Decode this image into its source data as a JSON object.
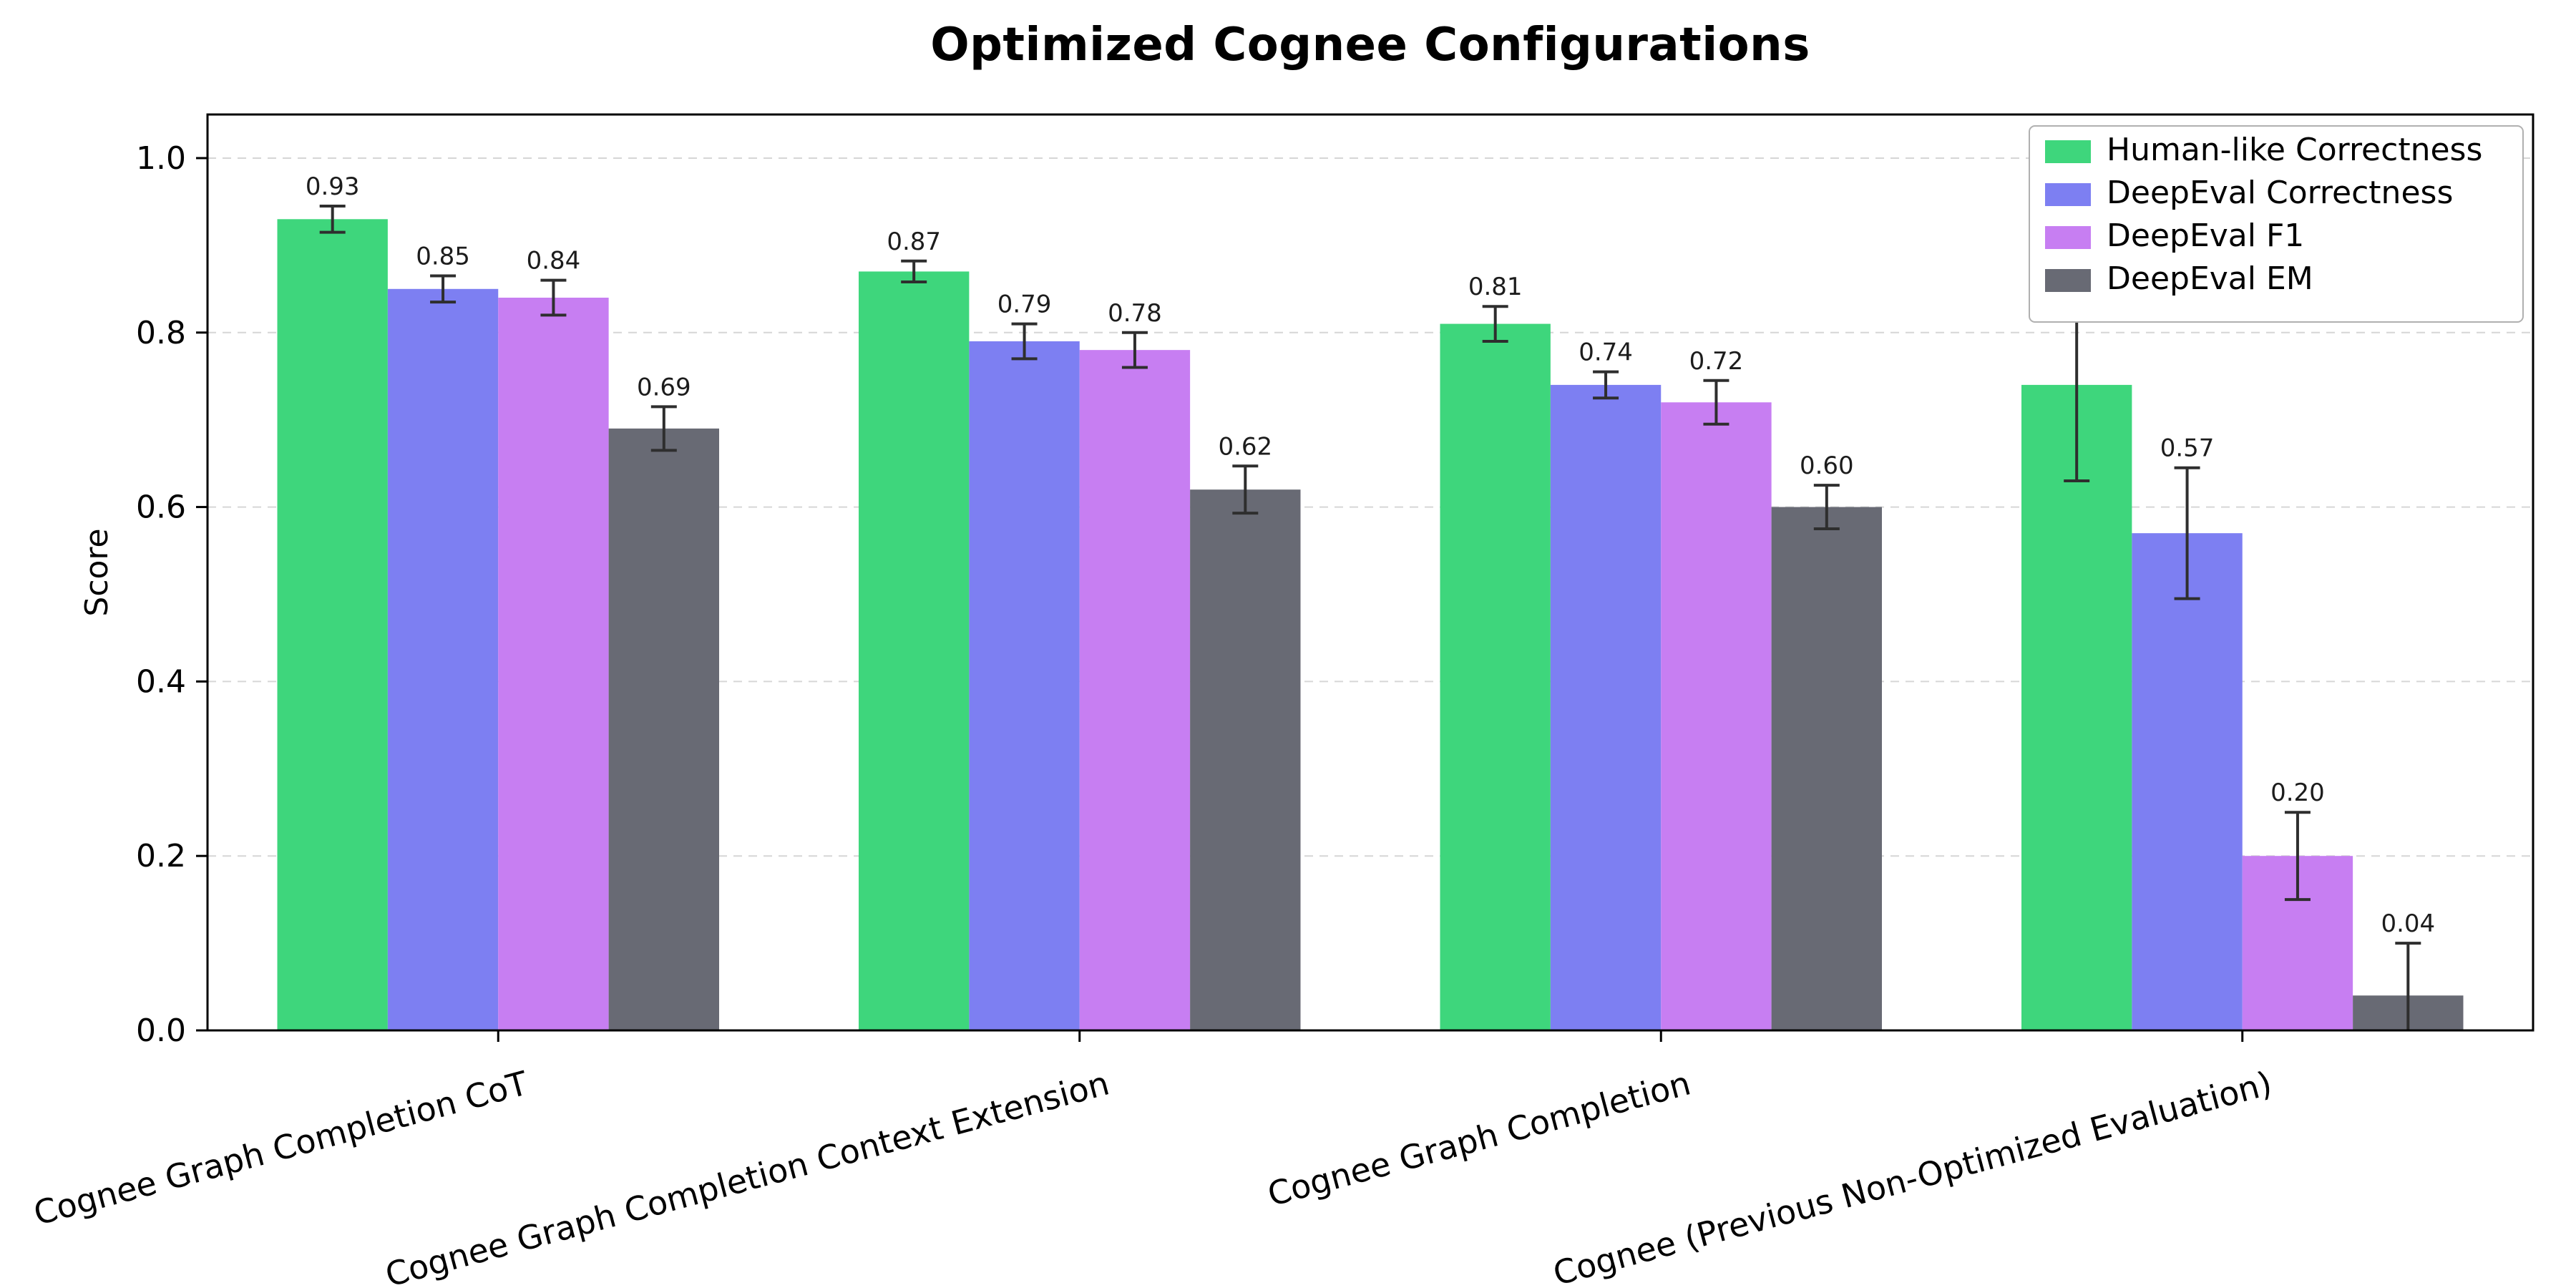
{
  "chart_data": {
    "type": "bar",
    "title": "Optimized Cognee Configurations",
    "ylabel": "Score",
    "xlabel": "",
    "ylim": [
      0,
      1.05
    ],
    "yticks": [
      0.0,
      0.2,
      0.4,
      0.6,
      0.8,
      1.0
    ],
    "grid": "horizontal-dashed",
    "legend_position": "upper-right",
    "background_color": "#ffffff",
    "error_bar_color": "#2e2e2e",
    "categories": [
      "Cognee Graph Completion CoT",
      "Cognee Graph Completion Context Extension",
      "Cognee Graph Completion",
      "Cognee (Previous Non-Optimized Evaluation)"
    ],
    "series": [
      {
        "name": "Human-like Correctness",
        "color": "#3ed67c",
        "values": [
          0.93,
          0.87,
          0.81,
          0.74
        ],
        "errors": [
          0.015,
          0.012,
          0.02,
          0.11
        ]
      },
      {
        "name": "DeepEval Correctness",
        "color": "#7d7ff2",
        "values": [
          0.85,
          0.79,
          0.74,
          0.57
        ],
        "errors": [
          0.015,
          0.02,
          0.015,
          0.075
        ]
      },
      {
        "name": "DeepEval F1",
        "color": "#c77ef2",
        "values": [
          0.84,
          0.78,
          0.72,
          0.2
        ],
        "errors": [
          0.02,
          0.02,
          0.025,
          0.05
        ]
      },
      {
        "name": "DeepEval EM",
        "color": "#686a74",
        "values": [
          0.69,
          0.62,
          0.6,
          0.04
        ],
        "errors": [
          0.025,
          0.027,
          0.025,
          0.06
        ]
      }
    ]
  }
}
